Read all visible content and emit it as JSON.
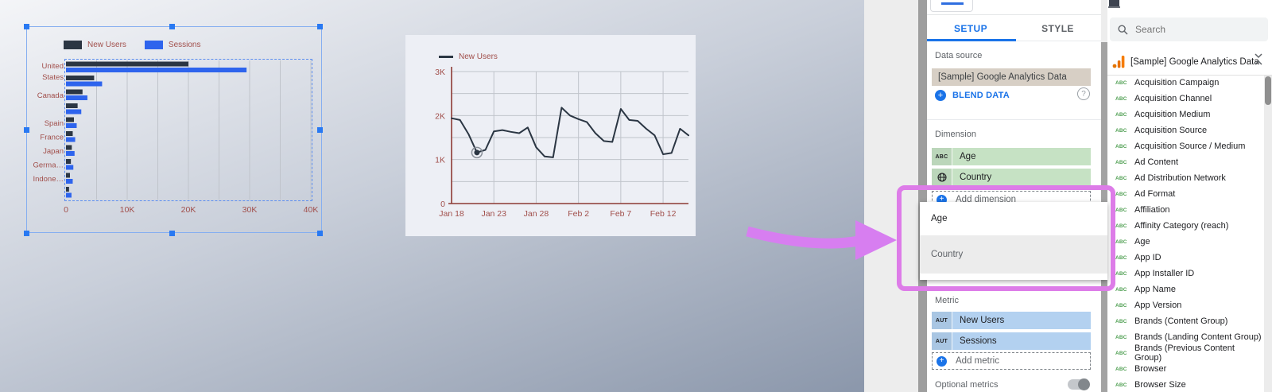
{
  "chart_data": [
    {
      "type": "bar",
      "orientation": "horizontal",
      "title": "",
      "categories": [
        "United\nStates",
        "",
        "Canada",
        "",
        "Spain",
        "France",
        "Japan",
        "Germa…",
        "Indone…",
        ""
      ],
      "series": [
        {
          "name": "New Users",
          "color_key": "bar_dark",
          "values": [
            20000,
            4600,
            2700,
            1900,
            1300,
            1100,
            950,
            800,
            650,
            500
          ]
        },
        {
          "name": "Sessions",
          "color_key": "bar_blue",
          "values": [
            29500,
            5900,
            3500,
            2500,
            1750,
            1500,
            1400,
            1200,
            1100,
            900
          ]
        }
      ],
      "x_ticks": [
        "0",
        "10K",
        "20K",
        "30K",
        "40K"
      ],
      "xlim": [
        0,
        40000
      ],
      "gridline_step": 5000,
      "legend_position": "top"
    },
    {
      "type": "line",
      "title": "",
      "series_name": "New Users",
      "x_tick_labels": [
        "Jan 18",
        "Jan 23",
        "Jan 28",
        "Feb 2",
        "Feb 7",
        "Feb 12"
      ],
      "x_tick_point_indices": [
        0,
        5,
        10,
        15,
        20,
        25
      ],
      "y_ticks": [
        "0",
        "1K",
        "2K",
        "3K"
      ],
      "ylim": [
        0,
        3000
      ],
      "gridline_step_y": 500,
      "values": [
        1940,
        1900,
        1580,
        1160,
        1220,
        1640,
        1670,
        1630,
        1600,
        1730,
        1280,
        1070,
        1050,
        2180,
        2000,
        1920,
        1850,
        1600,
        1420,
        1400,
        2150,
        1900,
        1880,
        1700,
        1550,
        1120,
        1150,
        1700,
        1550
      ],
      "highlight_point_index": 3,
      "legend_position": "top"
    }
  ],
  "properties_panel": {
    "tabs": {
      "setup": "SETUP",
      "style": "STYLE"
    },
    "data_source_label": "Data source",
    "data_source_value": "[Sample] Google Analytics Data",
    "blend_data_label": "BLEND DATA",
    "help_glyph": "?",
    "plus_glyph": "+",
    "dimension_label": "Dimension",
    "dimension_chips": [
      {
        "prefix": "ABC",
        "name": "Age"
      },
      {
        "prefix": "GLOBE",
        "name": "Country"
      }
    ],
    "add_dimension_label": "Add dimension",
    "metric_label": "Metric",
    "metric_chips": [
      {
        "prefix": "AUT",
        "name": "New Users"
      },
      {
        "prefix": "AUT",
        "name": "Sessions"
      }
    ],
    "add_metric_label": "Add metric",
    "optional_metrics_label": "Optional metrics"
  },
  "dimension_dropdown": {
    "items": [
      {
        "label": "Age",
        "highlighted": false
      },
      {
        "label": "Country",
        "highlighted": true
      }
    ]
  },
  "fields_panel": {
    "search_placeholder": "Search",
    "data_source_name": "[Sample] Google Analytics Data",
    "fields": [
      "Acquisition Campaign",
      "Acquisition Channel",
      "Acquisition Medium",
      "Acquisition Source",
      "Acquisition Source / Medium",
      "Ad Content",
      "Ad Distribution Network",
      "Ad Format",
      "Affiliation",
      "Affinity Category (reach)",
      "Age",
      "App ID",
      "App Installer ID",
      "App Name",
      "App Version",
      "Brands (Content Group)",
      "Brands (Landing Content Group)",
      "Brands (Previous Content Group)",
      "Browser",
      "Browser Size"
    ],
    "field_type_badge": "ABC"
  },
  "colors": {
    "accent_blue": "#1a73e8",
    "bar_dark": "#2b3643",
    "bar_blue": "#2e64ed",
    "maroon": "#a14f4b",
    "axis_red": "#8c3a34",
    "gridline": "#c0c4cb",
    "highlight_pink": "#dd7ce8",
    "dimension_green": "#c6e2c4",
    "metric_blue": "#b3d1f0",
    "datasource_tan": "#d7cfc5",
    "ga_orange": "#e37400",
    "selection_blue": "#2979f2"
  }
}
